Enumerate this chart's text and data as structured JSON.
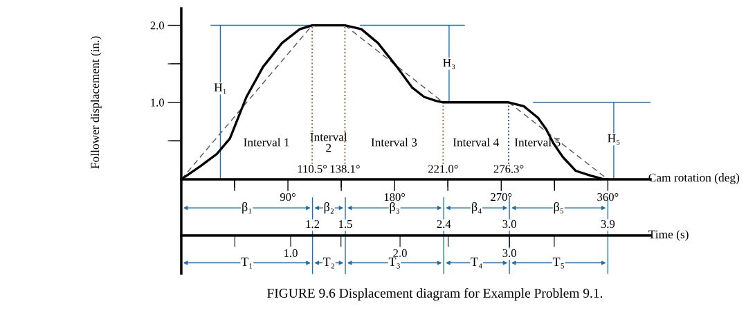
{
  "chart_data": {
    "type": "line",
    "title": "FIGURE 9.6 Displacement diagram for Example Problem 9.1.",
    "xlabel": "Cam rotation (deg)",
    "ylabel": "Follower displacement (in.)",
    "x2label": "Time (s)",
    "xlim": [
      0,
      396
    ],
    "xticks": [
      {
        "value": 45,
        "label": null
      },
      {
        "value": 90,
        "label": "90°"
      },
      {
        "value": 135,
        "label": null
      },
      {
        "value": 180,
        "label": "180°"
      },
      {
        "value": 225,
        "label": null
      },
      {
        "value": 270,
        "label": "270°"
      },
      {
        "value": 315,
        "label": null
      },
      {
        "value": 360,
        "label": "360°"
      }
    ],
    "ylim": [
      0,
      2.22
    ],
    "yticks": [
      {
        "value": 0.5,
        "label": null
      },
      {
        "value": 1.0,
        "label": "1.0"
      },
      {
        "value": 1.5,
        "label": null
      },
      {
        "value": 2.0,
        "label": "2.0"
      }
    ],
    "x2lim": [
      0,
      4.29
    ],
    "x2ticks": [
      {
        "value": 0.49,
        "label": null
      },
      {
        "value": 1.0,
        "label": "1.0"
      },
      {
        "value": 1.46,
        "label": null
      },
      {
        "value": 2.0,
        "label": "2.0"
      },
      {
        "value": 2.44,
        "label": null
      },
      {
        "value": 3.0,
        "label": "3.0"
      },
      {
        "value": 3.41,
        "label": null
      }
    ],
    "series": [
      {
        "color": "#000000",
        "x": [
          0,
          16,
          30,
          41,
          55,
          69,
          85,
          100,
          110.5,
          138.1,
          152,
          166,
          182,
          195,
          205,
          215,
          221,
          276.3,
          289,
          301,
          308,
          314,
          322,
          333,
          345,
          357,
          360
        ],
        "values": [
          0,
          0.17,
          0.33,
          0.53,
          1.07,
          1.46,
          1.77,
          1.95,
          2.0,
          2.0,
          1.95,
          1.77,
          1.46,
          1.19,
          1.07,
          1.02,
          1.0,
          1.0,
          0.95,
          0.8,
          0.65,
          0.47,
          0.29,
          0.11,
          0.05,
          0.0,
          0
        ]
      },
      {
        "color": "#555555",
        "line_style": "dashed",
        "x": [
          0,
          110.5
        ],
        "values": [
          0,
          2.0
        ]
      },
      {
        "color": "#555555",
        "line_style": "dashed",
        "x": [
          138.1,
          221
        ],
        "values": [
          2.0,
          1.0
        ]
      },
      {
        "color": "#555555",
        "line_style": "dashed",
        "x": [
          276.3,
          360
        ],
        "values": [
          1.0,
          0
        ]
      },
      {
        "color": "#1f6fb5",
        "x": [
          25,
          110.5
        ],
        "values": [
          2.0,
          2.0
        ]
      },
      {
        "color": "#1f6fb5",
        "x": [
          33,
          33
        ],
        "values": [
          0,
          2.0
        ]
      },
      {
        "color": "#1f6fb5",
        "x": [
          151,
          239
        ],
        "values": [
          2.0,
          2.0
        ]
      },
      {
        "color": "#1f6fb5",
        "x": [
          226,
          226
        ],
        "values": [
          1.0,
          2.0
        ]
      },
      {
        "color": "#1f6fb5",
        "x": [
          297,
          396
        ],
        "values": [
          1.0,
          1.0
        ]
      },
      {
        "color": "#1f6fb5",
        "x": [
          365,
          365
        ],
        "values": [
          0,
          1.0
        ]
      }
    ],
    "ref_lines": [
      {
        "axis": "x",
        "value": 110.5,
        "label": "110.5°",
        "line_style": "dotted",
        "color": "#9a6a2f"
      },
      {
        "axis": "x",
        "value": 138.1,
        "label": "138.1°",
        "line_style": "dotted",
        "color": "#9a6a2f"
      },
      {
        "axis": "x",
        "value": 221.0,
        "label": "221.0°",
        "line_style": "dotted",
        "color": "#9a6a2f"
      },
      {
        "axis": "x",
        "value": 276.3,
        "label": "276.3°",
        "line_style": "dotted",
        "color": "#2a3f8f"
      },
      {
        "axis": "x2",
        "value": 1.2,
        "label": "1.2",
        "color": "#1f6fb5"
      },
      {
        "axis": "x2",
        "value": 1.5,
        "label": "1.5",
        "color": "#1f6fb5"
      },
      {
        "axis": "x2",
        "value": 2.4,
        "label": "2.4",
        "color": "#1f6fb5"
      },
      {
        "axis": "x2",
        "value": 3.0,
        "label": "3.0",
        "color": "#1f6fb5"
      },
      {
        "axis": "x2",
        "value": 3.9,
        "label": "3.9",
        "color": "#1f6fb5"
      }
    ],
    "annotations": [
      "Interval 1",
      "Interval\n2",
      "Interval 3",
      "Interval 4",
      "Interval 5",
      {
        "text": "H₁",
        "x": 33,
        "y": 1.18
      },
      {
        "text": "H₃",
        "x": 226,
        "y": 1.5
      },
      {
        "text": "H₅",
        "x": 365,
        "y": 0.52
      },
      "β₁",
      "β₂",
      "β₃",
      "β₄",
      "β₅",
      "T₁",
      "T₂",
      "T₃",
      "T₄",
      "T₅"
    ],
    "grid": false,
    "legend": false
  }
}
